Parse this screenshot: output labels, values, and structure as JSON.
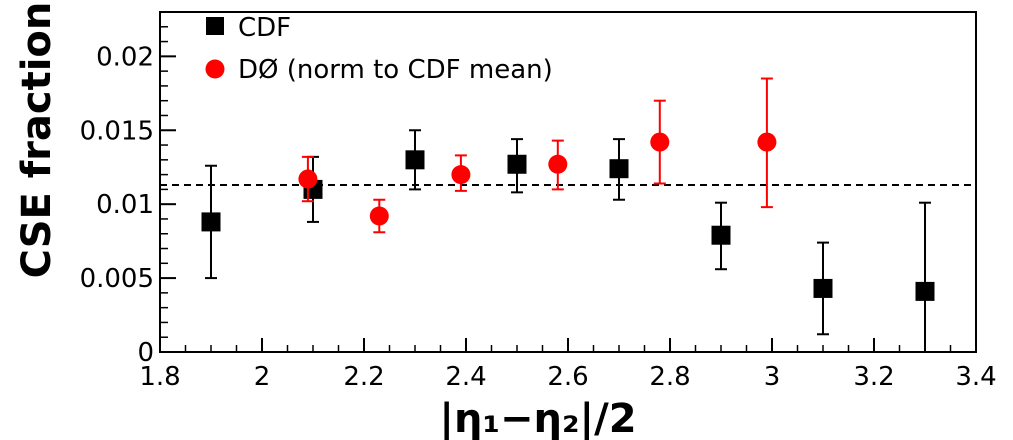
{
  "chart_data": {
    "type": "scatter",
    "xlabel": "|η₁−η₂|/2",
    "ylabel": "CSE fraction",
    "xlim": [
      1.8,
      3.4
    ],
    "ylim": [
      0,
      0.023
    ],
    "x_ticks": [
      "1.8",
      "2",
      "2.2",
      "2.4",
      "2.6",
      "2.8",
      "3",
      "3.2",
      "3.4"
    ],
    "x_tick_values": [
      1.8,
      2.0,
      2.2,
      2.4,
      2.6,
      2.8,
      3.0,
      3.2,
      3.4
    ],
    "y_ticks": [
      "0",
      "0.005",
      "0.01",
      "0.015",
      "0.02"
    ],
    "y_tick_values": [
      0,
      0.005,
      0.01,
      0.015,
      0.02
    ],
    "grid": false,
    "legend_position": "top-left",
    "reference_line": {
      "y": 0.0113,
      "style": "dashed"
    },
    "series": [
      {
        "name": "CDF",
        "marker": "square",
        "color": "#000000",
        "points": [
          {
            "x": 1.9,
            "y": 0.0088,
            "ylow": 0.005,
            "yhigh": 0.0126
          },
          {
            "x": 2.1,
            "y": 0.011,
            "ylow": 0.0088,
            "yhigh": 0.0132
          },
          {
            "x": 2.3,
            "y": 0.013,
            "ylow": 0.011,
            "yhigh": 0.015
          },
          {
            "x": 2.5,
            "y": 0.0127,
            "ylow": 0.0108,
            "yhigh": 0.0144
          },
          {
            "x": 2.7,
            "y": 0.0124,
            "ylow": 0.0103,
            "yhigh": 0.0144
          },
          {
            "x": 2.9,
            "y": 0.0079,
            "ylow": 0.0056,
            "yhigh": 0.0101
          },
          {
            "x": 3.1,
            "y": 0.0043,
            "ylow": 0.0012,
            "yhigh": 0.0074
          },
          {
            "x": 3.3,
            "y": 0.0041,
            "ylow": 0.0,
            "yhigh": 0.0101
          }
        ]
      },
      {
        "name": "DØ  (norm to CDF mean)",
        "marker": "circle",
        "color": "#ff0000",
        "points": [
          {
            "x": 2.09,
            "y": 0.0117,
            "ylow": 0.0102,
            "yhigh": 0.0132
          },
          {
            "x": 2.23,
            "y": 0.0092,
            "ylow": 0.0081,
            "yhigh": 0.0103
          },
          {
            "x": 2.39,
            "y": 0.012,
            "ylow": 0.0109,
            "yhigh": 0.0133
          },
          {
            "x": 2.58,
            "y": 0.0127,
            "ylow": 0.011,
            "yhigh": 0.0143
          },
          {
            "x": 2.78,
            "y": 0.0142,
            "ylow": 0.0114,
            "yhigh": 0.017
          },
          {
            "x": 2.99,
            "y": 0.0142,
            "ylow": 0.0098,
            "yhigh": 0.0185
          }
        ]
      }
    ]
  }
}
